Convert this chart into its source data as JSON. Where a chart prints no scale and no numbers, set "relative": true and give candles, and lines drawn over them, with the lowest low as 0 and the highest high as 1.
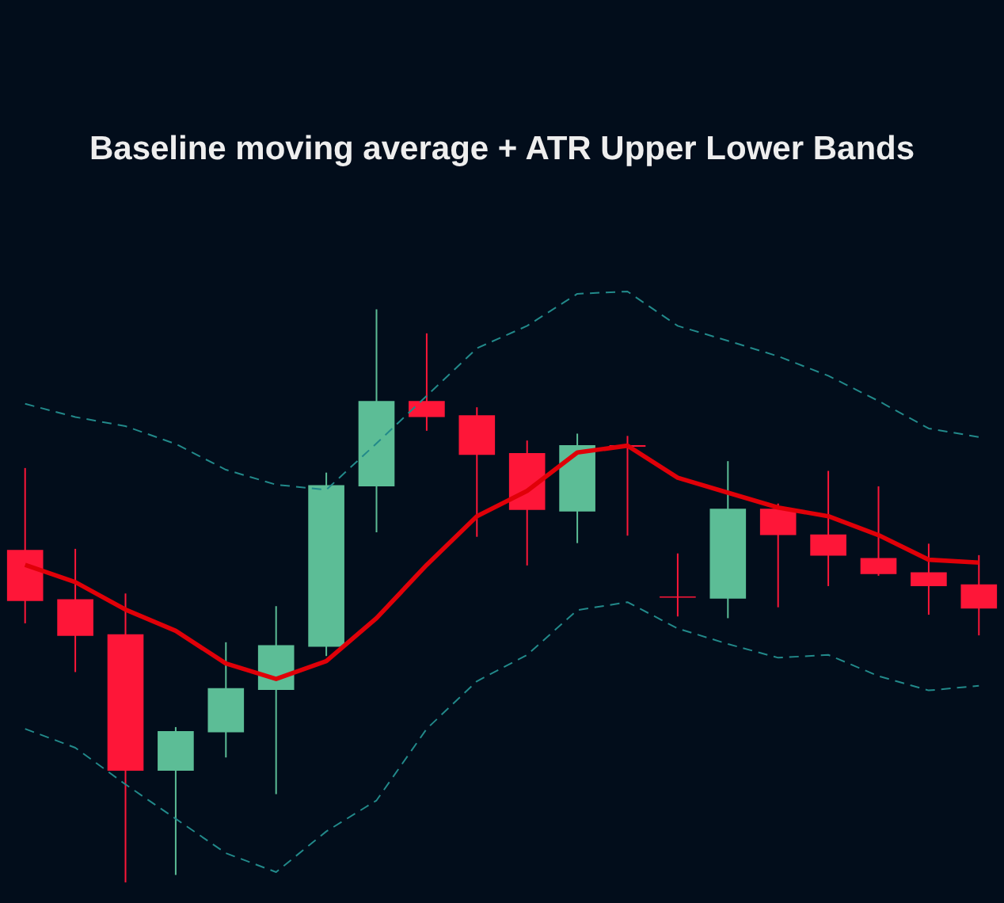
{
  "chart_data": {
    "type": "candlestick",
    "title": "Baseline moving average + ATR Upper Lower Bands",
    "relative": true,
    "categories": [
      null,
      null,
      null,
      null,
      null,
      null,
      null,
      null,
      null,
      null,
      null,
      null,
      null,
      null,
      null,
      null,
      null,
      null,
      null,
      null
    ],
    "ohlc": [
      [
        0.58,
        0.723,
        0.452,
        0.491
      ],
      [
        0.494,
        0.582,
        0.367,
        0.43
      ],
      [
        0.433,
        0.504,
        0,
        0.195
      ],
      [
        0.195,
        0.271,
        0.013,
        0.264
      ],
      [
        0.262,
        0.419,
        0.218,
        0.339
      ],
      [
        0.336,
        0.482,
        0.154,
        0.414
      ],
      [
        0.411,
        0.715,
        0.395,
        0.693
      ],
      [
        0.691,
        1,
        0.611,
        0.84
      ],
      [
        0.84,
        0.958,
        0.788,
        0.812
      ],
      [
        0.815,
        0.829,
        0.603,
        0.746
      ],
      [
        0.749,
        0.771,
        0.553,
        0.65
      ],
      [
        0.647,
        0.783,
        0.592,
        0.763
      ],
      [
        0.763,
        0.779,
        0.605,
        0.76
      ],
      [
        0.499,
        0.574,
        0.464,
        0.497
      ],
      [
        0.495,
        0.735,
        0.461,
        0.652
      ],
      [
        0.652,
        0.661,
        0.48,
        0.606
      ],
      [
        0.607,
        0.718,
        0.517,
        0.57
      ],
      [
        0.566,
        0.691,
        0.535,
        0.538
      ],
      [
        0.541,
        0.591,
        0.467,
        0.517
      ],
      [
        0.52,
        0.571,
        0.431,
        0.478
      ]
    ],
    "colors": [
      "#fe1638",
      "#fe1638",
      "#fe1638",
      "#5cbd96",
      "#5cbd96",
      "#5cbd96",
      "#5cbd96",
      "#5cbd96",
      "#fe1638",
      "#fe1638",
      "#fe1638",
      "#5cbd96",
      "#fe1638",
      "#fe1638",
      "#5cbd96",
      "#fe1638",
      "#fe1638",
      "#fe1638",
      "#fe1638",
      "#fe1638"
    ],
    "series": [
      {
        "type": "line",
        "color": "#22898a",
        "line_style": "dashed",
        "values": [
          0.835,
          0.812,
          0.796,
          0.765,
          0.72,
          0.694,
          0.685,
          0.766,
          0.849,
          0.932,
          0.971,
          1.027,
          1.031,
          0.971,
          0.945,
          0.918,
          0.884,
          0.84,
          0.792,
          0.777
        ]
      },
      {
        "type": "line",
        "color": "#22898a",
        "line_style": "dashed",
        "values": [
          0.268,
          0.235,
          0.171,
          0.111,
          0.051,
          0.018,
          0.089,
          0.143,
          0.268,
          0.351,
          0.397,
          0.475,
          0.489,
          0.443,
          0.416,
          0.392,
          0.397,
          0.36,
          0.335,
          0.343
        ]
      },
      {
        "type": "line",
        "color": "#e00008",
        "line_style": "solid",
        "values": [
          0.554,
          0.524,
          0.476,
          0.439,
          0.382,
          0.355,
          0.386,
          0.461,
          0.554,
          0.639,
          0.683,
          0.75,
          0.762,
          0.706,
          0.68,
          0.654,
          0.639,
          0.606,
          0.563,
          0.558
        ]
      }
    ]
  }
}
